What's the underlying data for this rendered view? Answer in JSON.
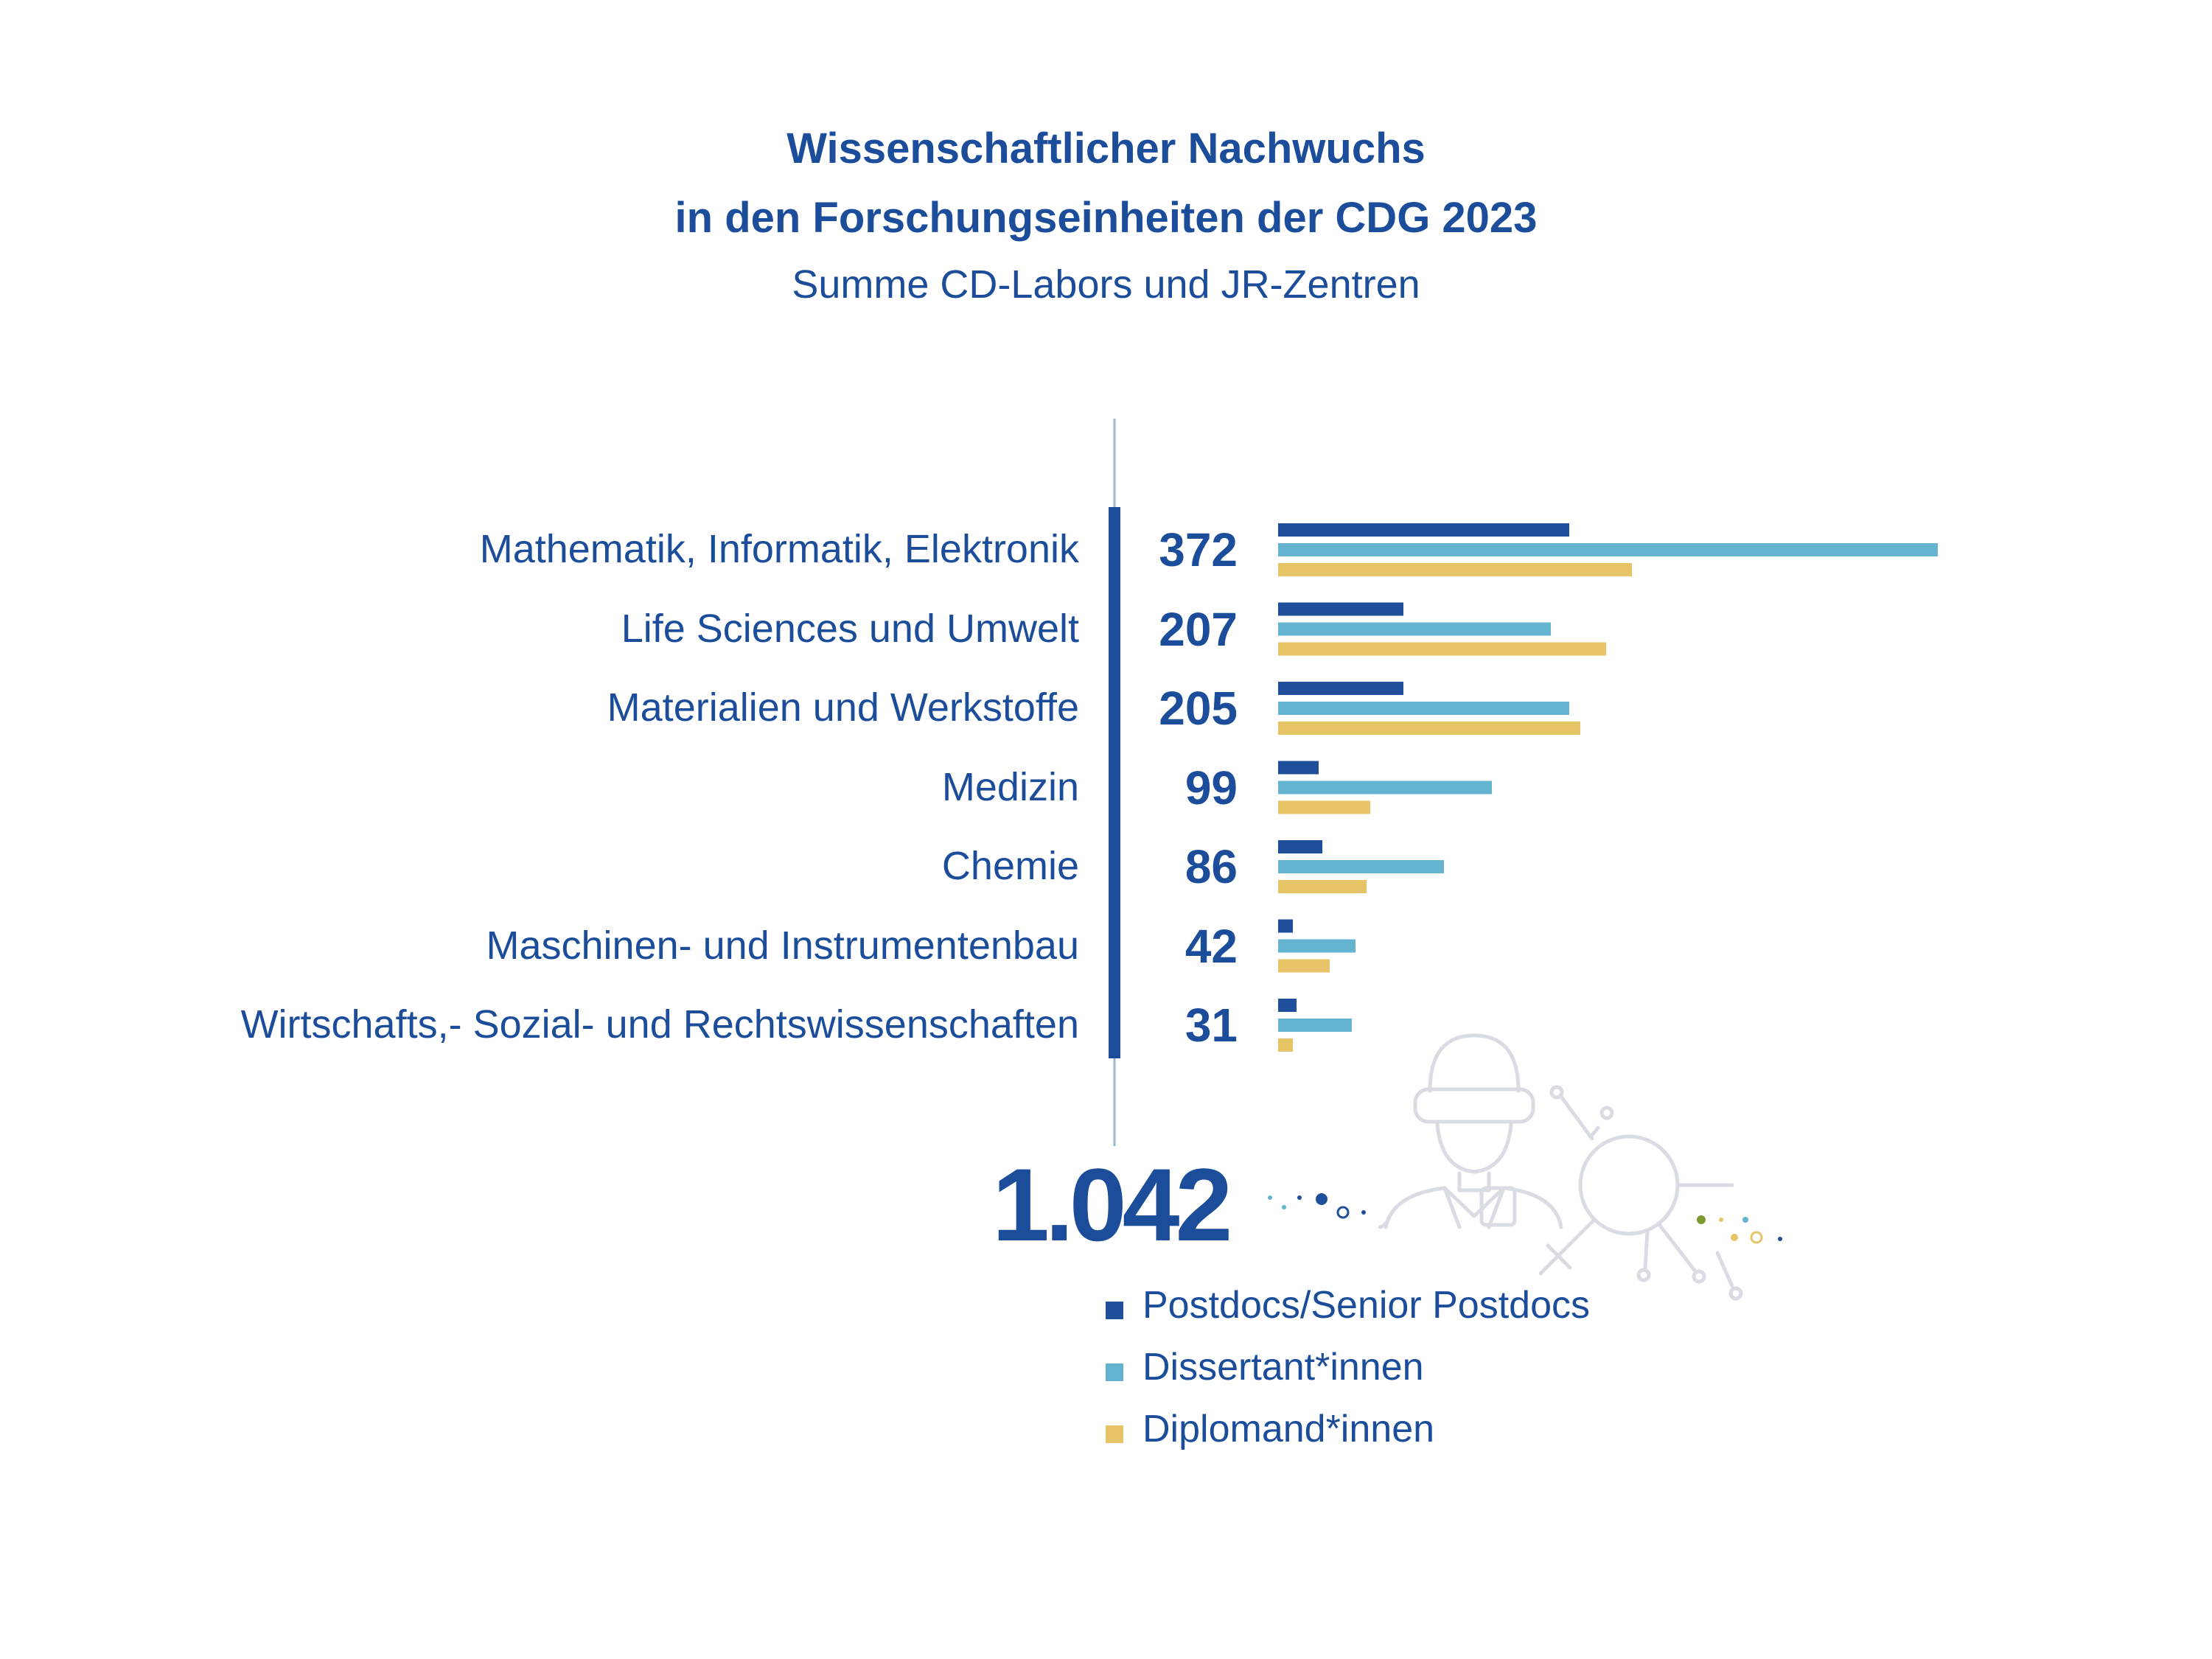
{
  "title": {
    "line1": "Wissenschaftlicher Nachwuchs",
    "line2": "in den Forschungseinheiten der CDG 2023",
    "subtitle": "Summe CD-Labors und JR-Zentren"
  },
  "colors": {
    "text": "#1b4d9a",
    "postdocs": "#1f4e9b",
    "dissertant": "#63b3d1",
    "diplomand": "#e6c467",
    "divider": "#1b4d9a",
    "axis_line": "#9fb6cc",
    "illustration": "#d9dde3"
  },
  "chart_data": {
    "type": "bar",
    "orientation": "horizontal",
    "title": "Wissenschaftlicher Nachwuchs in den Forschungseinheiten der CDG 2023",
    "subtitle": "Summe CD-Labors und JR-Zentren",
    "categories": [
      "Mathematik, Informatik, Elektronik",
      "Life Sciences und Umwelt",
      "Materialien und Werkstoffe",
      "Medizin",
      "Chemie",
      "Maschinen- und Instrumentenbau",
      "Wirtschafts,- Sozial- und Rechtswissenschaften"
    ],
    "totals": [
      "372",
      "207",
      "205",
      "99",
      "86",
      "42",
      "31"
    ],
    "series": [
      {
        "name": "Postdocs/Senior Postdocs",
        "color": "#1f4e9b",
        "values": [
          79,
          34,
          34,
          11,
          12,
          4,
          5
        ]
      },
      {
        "name": "Dissertant*innen",
        "color": "#63b3d1",
        "values": [
          179,
          74,
          79,
          58,
          45,
          21,
          20
        ]
      },
      {
        "name": "Diplomand*innen",
        "color": "#e6c467",
        "values": [
          96,
          89,
          82,
          25,
          24,
          14,
          4
        ]
      }
    ],
    "grand_total": "1.042",
    "legend_position": "bottom"
  }
}
